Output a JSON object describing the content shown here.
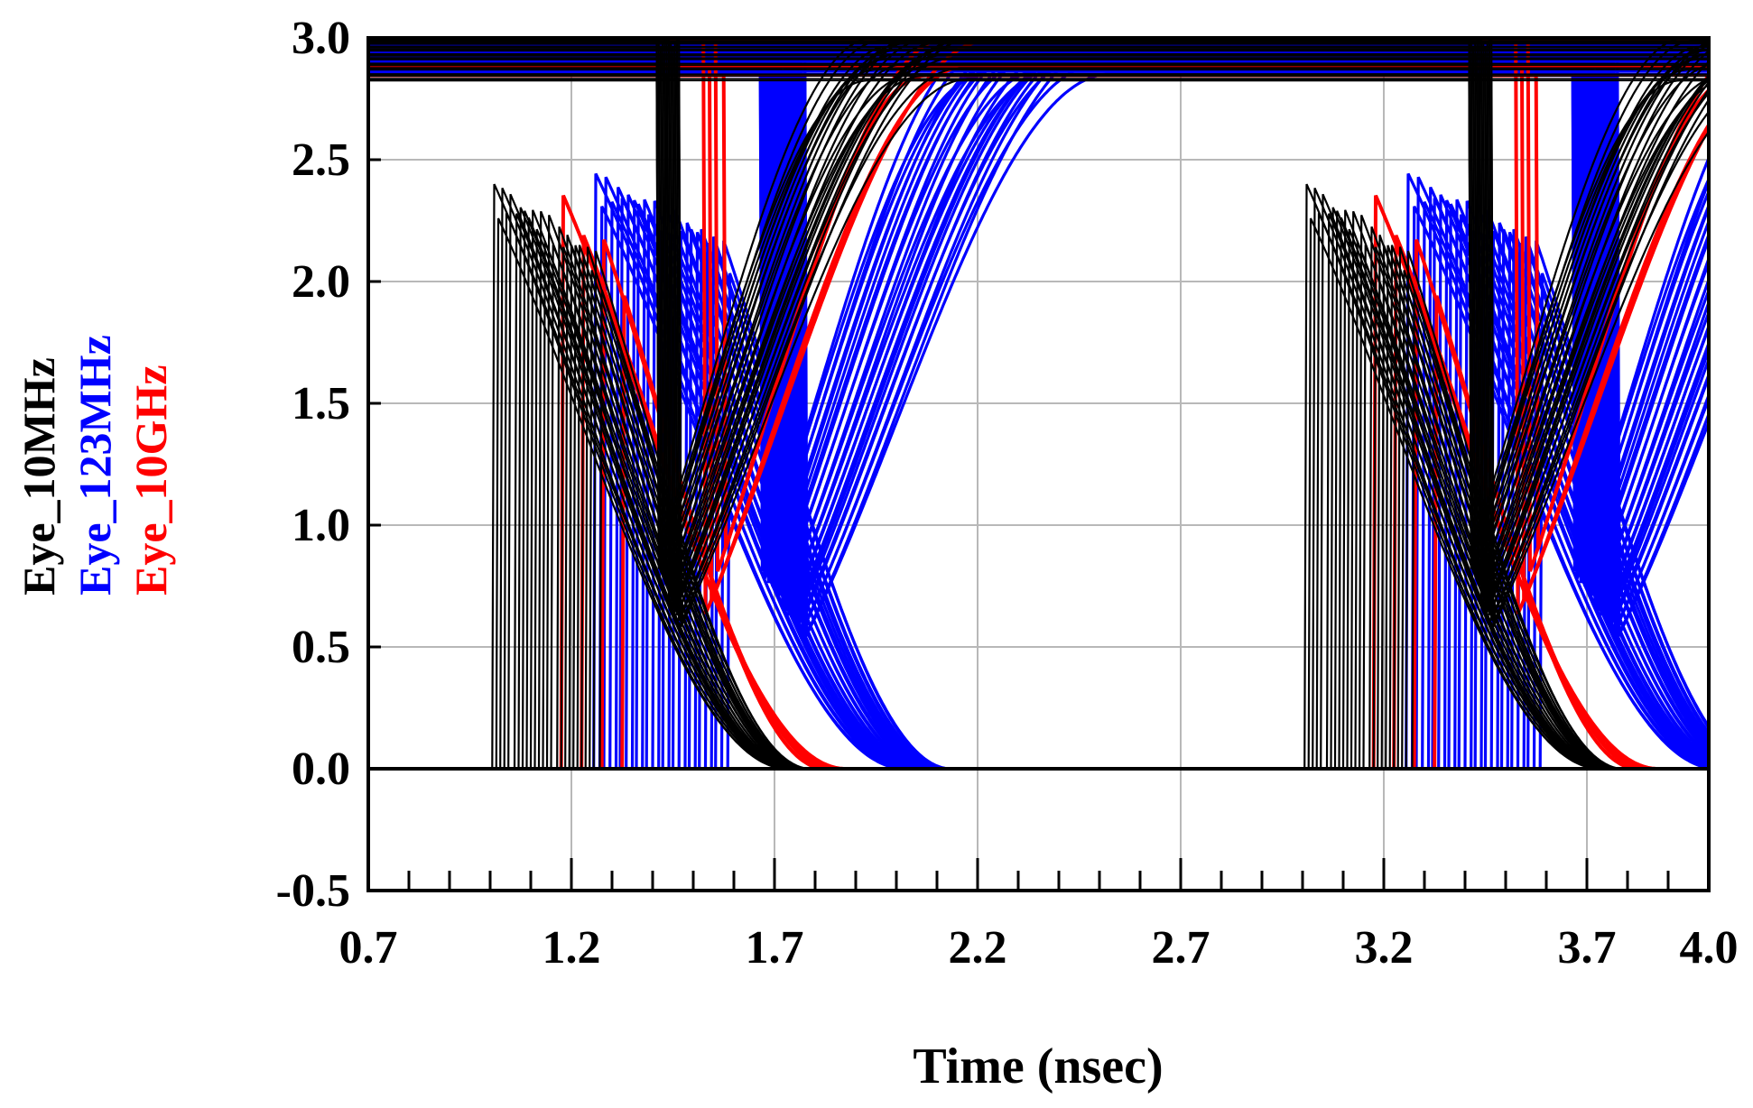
{
  "chart_data": {
    "type": "line",
    "title": "",
    "xlabel": "Time (nsec)",
    "ylabel": "",
    "xlim": [
      0.7,
      4.0
    ],
    "ylim": [
      -0.5,
      3.0
    ],
    "x_ticks": [
      "0.7",
      "1.2",
      "1.7",
      "2.2",
      "2.7",
      "3.2",
      "3.7",
      "4.0"
    ],
    "y_ticks": [
      "3.0",
      "2.5",
      "2.0",
      "1.5",
      "1.0",
      "0.5",
      "0.0",
      "-0.5"
    ],
    "x_tick_values": [
      0.7,
      1.2,
      1.7,
      2.2,
      2.7,
      3.2,
      3.7,
      4.0
    ],
    "y_tick_values": [
      3.0,
      2.5,
      2.0,
      1.5,
      1.0,
      0.5,
      0.0,
      -0.5
    ],
    "unit_interval_ns": 2.0,
    "legend_position": "left, rotated vertical",
    "series": [
      {
        "name": "Eye_10MHz",
        "color": "#000000",
        "low_level": 0.0,
        "high_level_range": [
          2.75,
          3.0
        ],
        "rise_crossing_ns": 1.6,
        "fall_crossing_ns": 1.3,
        "transition_time_ns": 0.82,
        "jitter_spread_ns": 0.16
      },
      {
        "name": "Eye_123MHz",
        "color": "#0000ff",
        "low_level": 0.0,
        "high_level_range": [
          2.78,
          3.0
        ],
        "rise_crossing_ns": 1.9,
        "fall_crossing_ns": 1.6,
        "transition_time_ns": 0.85,
        "jitter_spread_ns": 0.22
      },
      {
        "name": "Eye_10GHz",
        "color": "#ff0000",
        "low_level": 0.0,
        "high_level_range": [
          2.78,
          3.0
        ],
        "rise_crossing_ns": 1.7,
        "fall_crossing_ns": 1.4,
        "transition_time_ns": 0.8,
        "jitter_spread_ns": 0.05
      }
    ]
  }
}
